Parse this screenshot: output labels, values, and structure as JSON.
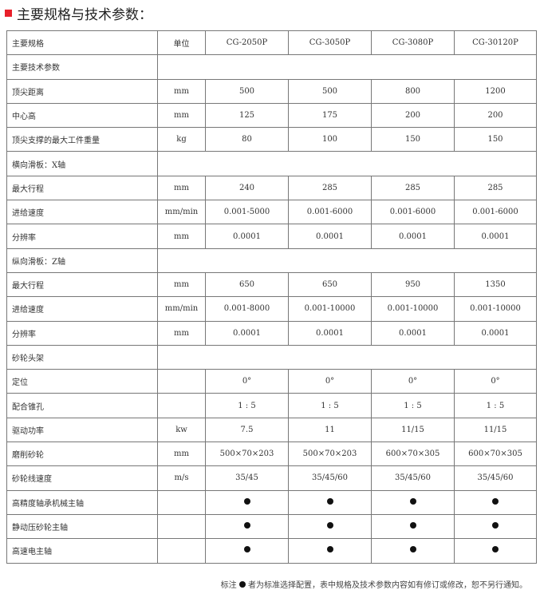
{
  "title": "主要规格与技术参数：",
  "header": [
    "主要规格",
    "单位",
    "CG-2050P",
    "CG-3050P",
    "CG-3080P",
    "CG-30120P"
  ],
  "rows": [
    {
      "label": "主要技术参数",
      "section": true
    },
    {
      "label": "顶尖距离",
      "unit": "mm",
      "values": [
        "500",
        "500",
        "800",
        "1200"
      ]
    },
    {
      "label": "中心高",
      "unit": "mm",
      "values": [
        "125",
        "175",
        "200",
        "200"
      ]
    },
    {
      "label": "顶尖支撑的最大工件重量",
      "unit": "kg",
      "values": [
        "80",
        "100",
        "150",
        "150"
      ]
    },
    {
      "label": "横向滑板：X轴",
      "section": true
    },
    {
      "label": "最大行程",
      "unit": "mm",
      "values": [
        "240",
        "285",
        "285",
        "285"
      ]
    },
    {
      "label": "进给速度",
      "unit": "mm/min",
      "values": [
        "0.001-5000",
        "0.001-6000",
        "0.001-6000",
        "0.001-6000"
      ]
    },
    {
      "label": "分辨率",
      "unit": "mm",
      "values": [
        "0.0001",
        "0.0001",
        "0.0001",
        "0.0001"
      ]
    },
    {
      "label": "纵向滑板：Z轴",
      "section": true
    },
    {
      "label": "最大行程",
      "unit": "mm",
      "values": [
        "650",
        "650",
        "950",
        "1350"
      ]
    },
    {
      "label": "进给速度",
      "unit": "mm/min",
      "values": [
        "0.001-8000",
        "0.001-10000",
        "0.001-10000",
        "0.001-10000"
      ]
    },
    {
      "label": "分辨率",
      "unit": "mm",
      "values": [
        "0.0001",
        "0.0001",
        "0.0001",
        "0.0001"
      ]
    },
    {
      "label": "砂轮头架",
      "section": true
    },
    {
      "label": "定位",
      "unit": "",
      "values": [
        "0°",
        "0°",
        "0°",
        "0°"
      ]
    },
    {
      "label": "配合锥孔",
      "unit": "",
      "values": [
        "1 : 5",
        "1 : 5",
        "1 : 5",
        "1 : 5"
      ]
    },
    {
      "label": "驱动功率",
      "unit": "kw",
      "values": [
        "7.5",
        "11",
        "11/15",
        "11/15"
      ]
    },
    {
      "label": "磨削砂轮",
      "unit": "mm",
      "values": [
        "500×70×203",
        "500×70×203",
        "600×70×305",
        "600×70×305"
      ]
    },
    {
      "label": "砂轮线速度",
      "unit": "m/s",
      "values": [
        "35/45",
        "35/45/60",
        "35/45/60",
        "35/45/60"
      ]
    },
    {
      "label": "高精度轴承机械主轴",
      "unit": "",
      "dots": [
        true,
        true,
        true,
        true
      ]
    },
    {
      "label": "静动压砂轮主轴",
      "unit": "",
      "dots": [
        true,
        true,
        true,
        true
      ]
    },
    {
      "label": "高速电主轴",
      "unit": "",
      "dots": [
        true,
        true,
        true,
        true
      ]
    }
  ],
  "note_prefix": "标注",
  "note_suffix": "者为标准选择配置，表中规格及技术参数内容如有修订或修改，恕不另行通知。"
}
